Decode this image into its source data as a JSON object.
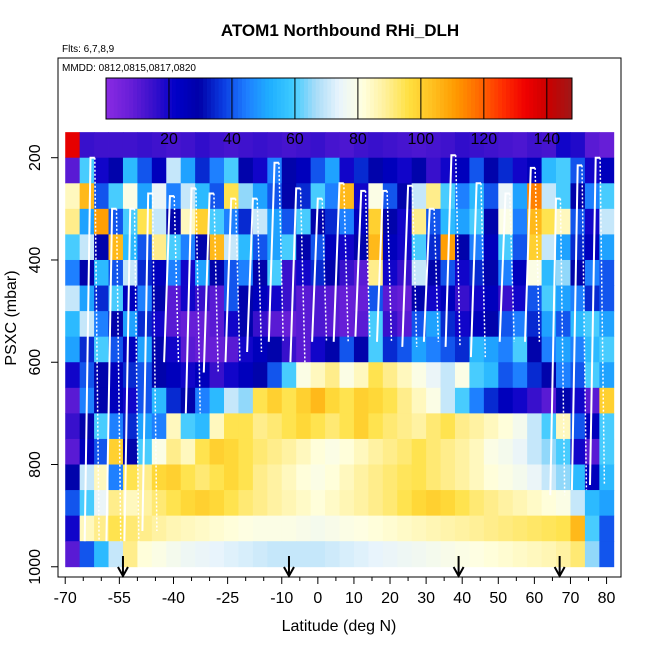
{
  "chart_data": {
    "type": "heatmap",
    "title": "ATOM1 Northbound RHi_DLH",
    "flights_label": "Flts: 6,7,8,9",
    "dates_label": "MMDD: 0812,0815,0817,0820",
    "xlabel": "Latitude (deg N)",
    "ylabel": "PSXC (mbar)",
    "xlim": [
      -72,
      84
    ],
    "ylim": [
      1020,
      5
    ],
    "x_ticks": [
      -70,
      -55,
      -40,
      -25,
      -10,
      0,
      10,
      20,
      30,
      40,
      50,
      60,
      70,
      80
    ],
    "x_tick_labels": [
      "-70",
      "-55",
      "-40",
      "-25",
      "-10",
      "0",
      "10",
      "20",
      "30",
      "40",
      "50",
      "60",
      "70",
      "80"
    ],
    "x_minor_ticks": [
      -65,
      -60,
      -50,
      -45,
      -35,
      -30,
      -20,
      -15,
      -5,
      5,
      15,
      25,
      35,
      45,
      55,
      65,
      75
    ],
    "y_ticks": [
      200,
      400,
      600,
      800,
      1000
    ],
    "y_tick_labels": [
      "200",
      "400",
      "600",
      "800",
      "1000"
    ],
    "colorbar": {
      "range": [
        0,
        148
      ],
      "ticks": [
        20,
        40,
        60,
        80,
        100,
        120,
        140
      ],
      "tick_labels": [
        "20",
        "40",
        "60",
        "80",
        "100",
        "120",
        "140"
      ],
      "colors": [
        "#8a2be2",
        "#6a1fd8",
        "#3a10cc",
        "#0000c8",
        "#0000a8",
        "#0a3ae0",
        "#1e7cff",
        "#1faeff",
        "#3ccaff",
        "#a8dcf8",
        "#e8f4fc",
        "#ffffe0",
        "#fff09a",
        "#ffe040",
        "#ffc020",
        "#ff9a00",
        "#ff6a00",
        "#ff3000",
        "#f00000",
        "#c80000",
        "#a01818"
      ]
    },
    "pressure_levels": [
      175,
      225,
      275,
      325,
      375,
      425,
      475,
      525,
      575,
      625,
      675,
      725,
      775,
      825,
      875,
      925,
      975
    ],
    "lat_bins": [
      -68,
      -64,
      -60,
      -56,
      -52,
      -48,
      -44,
      -40,
      -36,
      -32,
      -28,
      -24,
      -20,
      -16,
      -12,
      -8,
      -4,
      0,
      4,
      8,
      12,
      16,
      20,
      24,
      28,
      32,
      36,
      40,
      44,
      48,
      52,
      56,
      60,
      64,
      68,
      72,
      76,
      80
    ],
    "rhi_grid": [
      [
        135,
        15,
        14,
        14,
        14,
        15,
        14,
        13,
        14,
        16,
        14,
        13,
        14,
        15,
        14,
        13,
        14,
        15,
        13,
        12,
        14,
        15,
        14,
        13,
        12,
        13,
        14,
        16,
        15,
        14,
        13,
        12,
        14,
        13,
        20,
        18,
        10,
        8
      ],
      [
        10,
        60,
        20,
        30,
        55,
        40,
        25,
        70,
        50,
        35,
        45,
        60,
        30,
        20,
        45,
        30,
        25,
        40,
        50,
        20,
        35,
        30,
        25,
        20,
        30,
        15,
        20,
        25,
        40,
        30,
        35,
        20,
        25,
        55,
        60,
        40,
        20,
        25
      ],
      [
        85,
        105,
        40,
        60,
        80,
        50,
        75,
        45,
        70,
        55,
        40,
        95,
        65,
        50,
        40,
        30,
        35,
        60,
        45,
        105,
        20,
        80,
        40,
        30,
        70,
        90,
        60,
        45,
        55,
        40,
        75,
        50,
        115,
        70,
        60,
        30,
        45,
        60
      ],
      [
        90,
        50,
        110,
        40,
        60,
        95,
        70,
        30,
        85,
        100,
        60,
        45,
        35,
        70,
        50,
        40,
        60,
        30,
        35,
        45,
        25,
        100,
        30,
        20,
        90,
        40,
        55,
        50,
        60,
        30,
        80,
        45,
        105,
        95,
        85,
        40,
        20,
        70
      ],
      [
        60,
        70,
        30,
        105,
        55,
        40,
        90,
        60,
        45,
        30,
        105,
        70,
        55,
        40,
        50,
        60,
        30,
        40,
        25,
        20,
        30,
        105,
        25,
        20,
        60,
        35,
        110,
        30,
        45,
        25,
        60,
        40,
        100,
        70,
        50,
        35,
        25,
        50
      ],
      [
        45,
        30,
        55,
        40,
        70,
        35,
        25,
        45,
        20,
        50,
        30,
        40,
        45,
        30,
        60,
        15,
        20,
        35,
        30,
        15,
        10,
        90,
        20,
        15,
        70,
        30,
        40,
        20,
        35,
        30,
        45,
        25,
        80,
        55,
        65,
        30,
        45,
        40
      ],
      [
        70,
        50,
        35,
        60,
        25,
        45,
        30,
        10,
        20,
        15,
        10,
        40,
        30,
        25,
        20,
        15,
        10,
        12,
        10,
        8,
        8,
        40,
        10,
        8,
        30,
        20,
        25,
        15,
        20,
        25,
        15,
        20,
        40,
        60,
        50,
        45,
        35,
        40
      ],
      [
        55,
        70,
        45,
        30,
        50,
        35,
        20,
        10,
        8,
        8,
        10,
        20,
        30,
        15,
        10,
        8,
        10,
        12,
        10,
        8,
        10,
        60,
        15,
        10,
        40,
        50,
        35,
        20,
        25,
        30,
        40,
        45,
        35,
        50,
        40,
        55,
        60,
        50
      ],
      [
        50,
        35,
        60,
        40,
        25,
        50,
        30,
        20,
        10,
        8,
        8,
        10,
        20,
        25,
        30,
        15,
        10,
        20,
        30,
        40,
        30,
        60,
        35,
        40,
        50,
        45,
        40,
        35,
        55,
        50,
        45,
        60,
        30,
        45,
        50,
        45,
        55,
        60
      ],
      [
        20,
        40,
        30,
        25,
        35,
        40,
        30,
        25,
        20,
        25,
        15,
        20,
        25,
        30,
        40,
        60,
        80,
        85,
        90,
        80,
        85,
        95,
        90,
        85,
        80,
        75,
        70,
        80,
        60,
        55,
        40,
        45,
        35,
        30,
        45,
        40,
        60,
        50
      ],
      [
        10,
        45,
        30,
        25,
        20,
        40,
        55,
        35,
        30,
        45,
        55,
        70,
        65,
        95,
        100,
        95,
        100,
        105,
        98,
        95,
        100,
        98,
        95,
        90,
        85,
        80,
        70,
        60,
        45,
        35,
        25,
        20,
        15,
        10,
        30,
        20,
        10,
        100
      ],
      [
        15,
        30,
        60,
        45,
        35,
        50,
        45,
        85,
        60,
        55,
        85,
        95,
        95,
        90,
        92,
        95,
        98,
        95,
        92,
        95,
        100,
        95,
        92,
        90,
        88,
        92,
        95,
        90,
        88,
        85,
        82,
        78,
        70,
        60,
        85,
        40,
        25,
        60
      ],
      [
        10,
        25,
        40,
        100,
        30,
        60,
        80,
        90,
        85,
        95,
        100,
        98,
        95,
        92,
        90,
        88,
        85,
        82,
        80,
        82,
        85,
        88,
        90,
        92,
        95,
        92,
        90,
        88,
        85,
        80,
        78,
        75,
        70,
        65,
        60,
        20,
        10,
        60
      ],
      [
        30,
        70,
        85,
        45,
        95,
        90,
        98,
        100,
        95,
        92,
        95,
        98,
        95,
        90,
        88,
        85,
        82,
        80,
        82,
        85,
        88,
        90,
        92,
        94,
        95,
        92,
        90,
        88,
        85,
        82,
        80,
        78,
        75,
        70,
        65,
        55,
        25,
        55
      ],
      [
        40,
        60,
        75,
        90,
        85,
        88,
        92,
        95,
        98,
        100,
        98,
        95,
        92,
        90,
        88,
        86,
        84,
        82,
        84,
        86,
        88,
        90,
        92,
        95,
        98,
        100,
        98,
        95,
        92,
        90,
        88,
        86,
        84,
        82,
        80,
        70,
        55,
        50
      ],
      [
        20,
        85,
        90,
        95,
        92,
        90,
        88,
        86,
        85,
        84,
        83,
        82,
        81,
        80,
        80,
        80,
        79,
        78,
        79,
        80,
        81,
        82,
        83,
        84,
        85,
        86,
        87,
        88,
        89,
        90,
        91,
        92,
        93,
        94,
        95,
        105,
        60,
        40
      ],
      [
        10,
        40,
        55,
        70,
        90,
        82,
        80,
        78,
        76,
        75,
        74,
        73,
        72,
        71,
        70,
        70,
        70,
        70,
        71,
        72,
        73,
        74,
        75,
        76,
        77,
        78,
        79,
        80,
        81,
        82,
        83,
        84,
        85,
        86,
        88,
        92,
        65,
        40
      ]
    ],
    "profile_traces": [
      {
        "lat": -63,
        "p_top": 200,
        "p_bottom": 950
      },
      {
        "lat": -57,
        "p_top": 300,
        "p_bottom": 950
      },
      {
        "lat": -52,
        "p_top": 300,
        "p_bottom": 950
      },
      {
        "lat": -47,
        "p_top": 270,
        "p_bottom": 930
      },
      {
        "lat": -41,
        "p_top": 275,
        "p_bottom": 600
      },
      {
        "lat": -35,
        "p_top": 260,
        "p_bottom": 700
      },
      {
        "lat": -30,
        "p_top": 270,
        "p_bottom": 620
      },
      {
        "lat": -24,
        "p_top": 280,
        "p_bottom": 600
      },
      {
        "lat": -18,
        "p_top": 280,
        "p_bottom": 580
      },
      {
        "lat": -12,
        "p_top": 210,
        "p_bottom": 560
      },
      {
        "lat": -6,
        "p_top": 260,
        "p_bottom": 600
      },
      {
        "lat": 0,
        "p_top": 280,
        "p_bottom": 560
      },
      {
        "lat": 6,
        "p_top": 250,
        "p_bottom": 560
      },
      {
        "lat": 12,
        "p_top": 265,
        "p_bottom": 550
      },
      {
        "lat": 18,
        "p_top": 265,
        "p_bottom": 560
      },
      {
        "lat": 25,
        "p_top": 255,
        "p_bottom": 570
      },
      {
        "lat": 31,
        "p_top": 300,
        "p_bottom": 560
      },
      {
        "lat": 37,
        "p_top": 195,
        "p_bottom": 570
      },
      {
        "lat": 44,
        "p_top": 250,
        "p_bottom": 590
      },
      {
        "lat": 52,
        "p_top": 270,
        "p_bottom": 560
      },
      {
        "lat": 59,
        "p_top": 220,
        "p_bottom": 560
      },
      {
        "lat": 66,
        "p_top": 280,
        "p_bottom": 860
      },
      {
        "lat": 72,
        "p_top": 215,
        "p_bottom": 850
      },
      {
        "lat": 77,
        "p_top": 200,
        "p_bottom": 840
      }
    ],
    "flight_markers_lat": [
      -54,
      -8,
      39,
      67
    ]
  }
}
